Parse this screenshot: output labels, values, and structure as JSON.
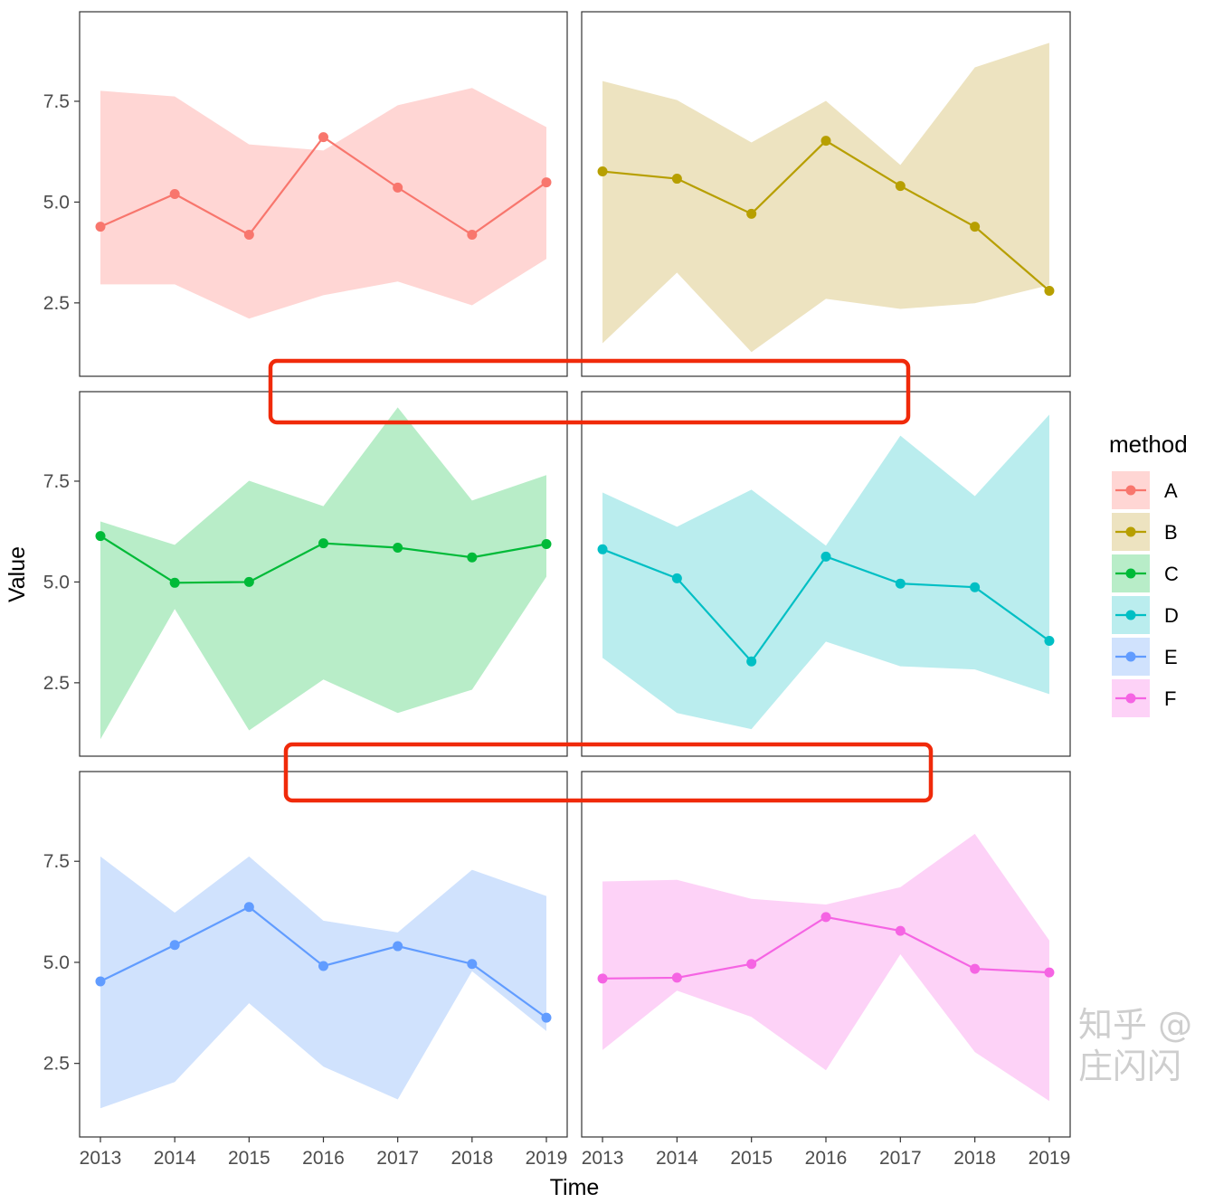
{
  "chart_data": {
    "type": "line",
    "facet_layout": "3 rows x 2 columns",
    "x": [
      2013,
      2014,
      2015,
      2016,
      2017,
      2018,
      2019
    ],
    "xlabel": "Time",
    "ylabel": "Value",
    "xlim": [
      2012.72,
      2019.28
    ],
    "ylim": [
      0.68,
      9.72
    ],
    "yticks": [
      2.5,
      5.0,
      7.5
    ],
    "yticklabels": [
      "2.5",
      "5.0",
      "7.5"
    ],
    "xticklabels": [
      "2013",
      "2014",
      "2015",
      "2016",
      "2017",
      "2018",
      "2019"
    ],
    "grid": false,
    "legend": {
      "title": "method",
      "placement": "right"
    },
    "series": [
      {
        "name": "A",
        "color": "#F8766D",
        "fill": "#FFD6D4",
        "values": [
          4.39,
          5.2,
          4.19,
          6.61,
          5.36,
          4.19,
          5.49
        ],
        "upper": [
          7.76,
          7.62,
          6.43,
          6.28,
          7.4,
          7.83,
          6.86
        ],
        "lower": [
          2.96,
          2.96,
          2.11,
          2.69,
          3.03,
          2.44,
          3.59
        ]
      },
      {
        "name": "B",
        "color": "#B79F00",
        "fill": "#EDE3C0",
        "values": [
          5.76,
          5.58,
          4.71,
          6.52,
          5.4,
          4.39,
          2.8
        ],
        "upper": [
          8.0,
          7.53,
          6.48,
          7.51,
          5.92,
          8.34,
          8.95
        ],
        "lower": [
          1.5,
          3.25,
          1.28,
          2.6,
          2.35,
          2.49,
          2.94
        ]
      },
      {
        "name": "C",
        "color": "#00BA38",
        "fill": "#B8EDC8",
        "values": [
          6.14,
          4.98,
          5.0,
          5.96,
          5.85,
          5.61,
          5.94
        ],
        "upper": [
          6.5,
          5.92,
          7.51,
          6.88,
          9.33,
          7.02,
          7.65
        ],
        "lower": [
          1.1,
          4.33,
          1.32,
          2.58,
          1.75,
          2.33,
          5.13
        ]
      },
      {
        "name": "D",
        "color": "#00BFC4",
        "fill": "#BAEDEE",
        "values": [
          5.81,
          5.09,
          3.03,
          5.63,
          4.96,
          4.87,
          3.54
        ],
        "upper": [
          7.22,
          6.37,
          7.29,
          5.9,
          8.63,
          7.13,
          9.15
        ],
        "lower": [
          3.12,
          1.75,
          1.35,
          3.52,
          2.91,
          2.83,
          2.22
        ]
      },
      {
        "name": "E",
        "color": "#619CFF",
        "fill": "#D0E2FD",
        "values": [
          4.53,
          5.43,
          6.37,
          4.91,
          5.4,
          4.96,
          3.63
        ],
        "upper": [
          7.62,
          6.23,
          7.62,
          6.03,
          5.74,
          7.29,
          6.64
        ],
        "lower": [
          1.39,
          2.04,
          3.99,
          2.42,
          1.61,
          4.78,
          3.3
        ]
      },
      {
        "name": "F",
        "color": "#F564E3",
        "fill": "#FDD2F7",
        "values": [
          4.6,
          4.62,
          4.96,
          6.12,
          5.78,
          4.84,
          4.75
        ],
        "upper": [
          7.0,
          7.04,
          6.57,
          6.43,
          6.86,
          8.18,
          5.54
        ],
        "lower": [
          2.83,
          4.3,
          3.65,
          2.33,
          5.2,
          2.78,
          1.57
        ]
      }
    ],
    "annotations": {
      "highlight_color": "#F02A0A",
      "count": 2
    }
  },
  "watermark": "知乎 @庄闪闪"
}
